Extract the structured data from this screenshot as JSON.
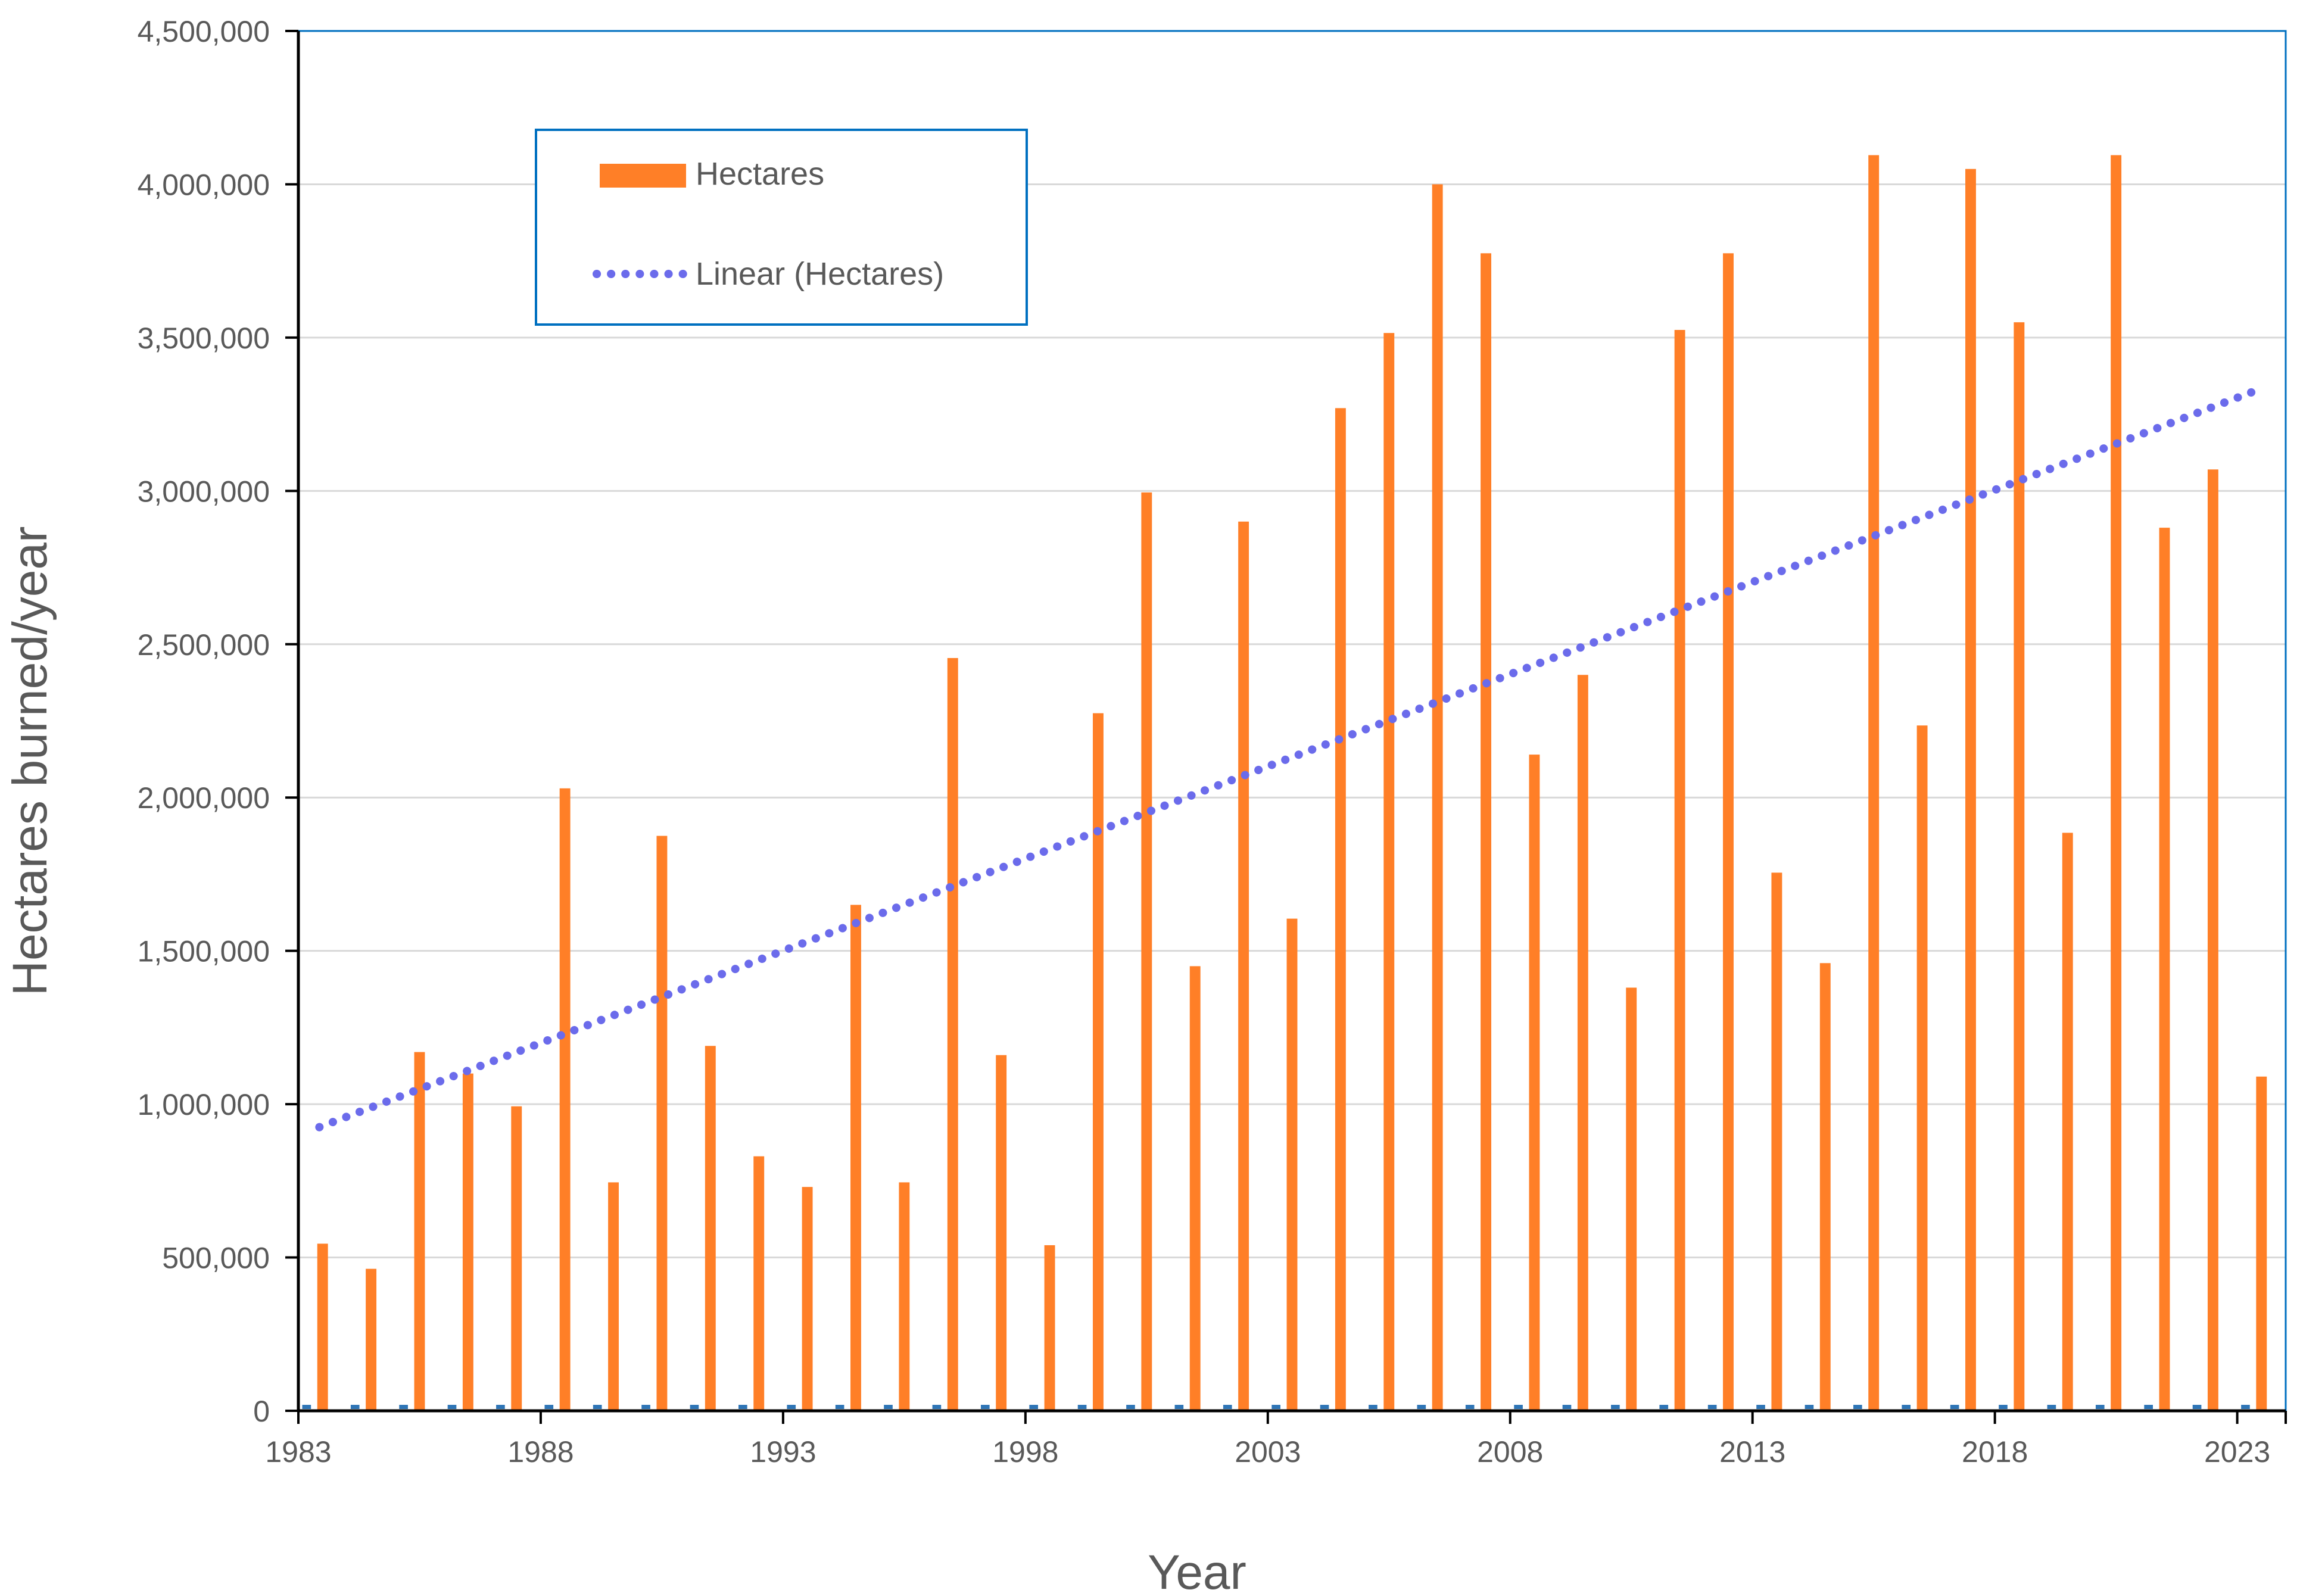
{
  "colors": {
    "bar": "#FF7F27",
    "trendline": "#6B6BEB",
    "frame": "#0070C0",
    "axis": "#000000",
    "gridline": "#D9D9D9",
    "text": "#595959",
    "baseline_series": "#2E75B6"
  },
  "chart_data": {
    "type": "bar",
    "xlabel": "Year",
    "ylabel": "Hectares burned/year",
    "ylim": [
      0,
      4500000
    ],
    "ytick_values": [
      0,
      500000,
      1000000,
      1500000,
      2000000,
      2500000,
      3000000,
      3500000,
      4000000,
      4500000
    ],
    "ytick_labels": [
      "0",
      "500,000",
      "1,000,000",
      "1,500,000",
      "2,000,000",
      "2,500,000",
      "3,000,000",
      "3,500,000",
      "4,000,000",
      "4,500,000"
    ],
    "xtick_labels": [
      "1983",
      "1988",
      "1993",
      "1998",
      "2003",
      "2008",
      "2013",
      "2018",
      "2023"
    ],
    "categories": [
      1983,
      1984,
      1985,
      1986,
      1987,
      1988,
      1989,
      1990,
      1991,
      1992,
      1993,
      1994,
      1995,
      1996,
      1997,
      1998,
      1999,
      2000,
      2001,
      2002,
      2003,
      2004,
      2005,
      2006,
      2007,
      2008,
      2009,
      2010,
      2011,
      2012,
      2013,
      2014,
      2015,
      2016,
      2017,
      2018,
      2019,
      2020,
      2021,
      2022,
      2023
    ],
    "series": [
      {
        "name": "Hectares",
        "values": [
          545000,
          463000,
          1170000,
          1100000,
          993000,
          2030000,
          745000,
          1875000,
          1190000,
          830000,
          730000,
          1650000,
          745000,
          2455000,
          1160000,
          540000,
          2275000,
          2995000,
          1450000,
          2900000,
          1605000,
          3270000,
          3515000,
          4000000,
          3775000,
          2140000,
          2400000,
          1380000,
          3525000,
          3775000,
          1755000,
          1460000,
          4095000,
          2235000,
          4050000,
          3550000,
          1885000,
          4095000,
          2880000,
          3070000,
          1090000
        ]
      }
    ],
    "trendline": {
      "name": "Linear (Hectares)",
      "type": "linear",
      "style": "dotted",
      "start": 925000,
      "end": 3330000
    },
    "legend": {
      "position": "top-left",
      "entries": [
        "Hectares",
        "Linear (Hectares)"
      ]
    },
    "grid": true
  }
}
